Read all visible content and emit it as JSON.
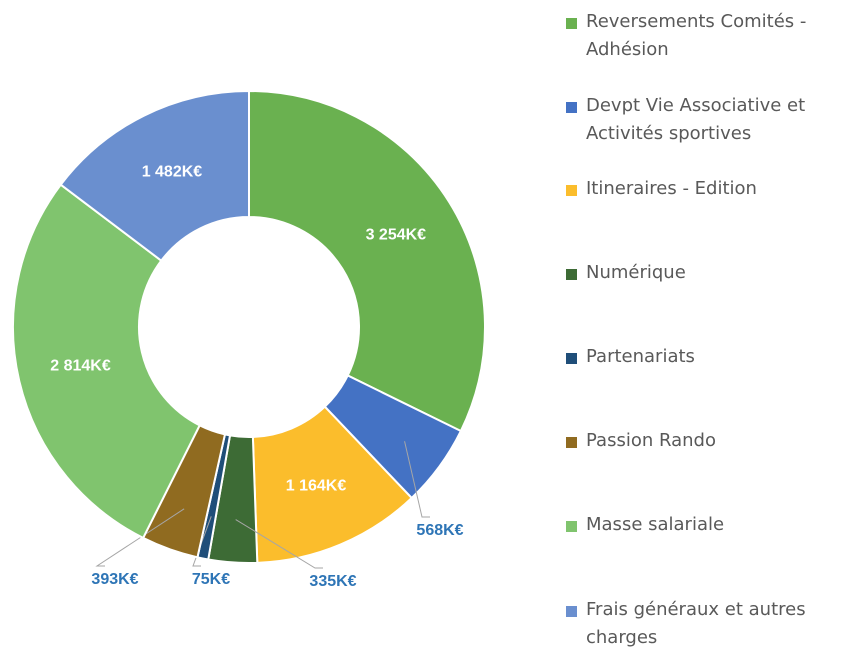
{
  "chart_data": {
    "type": "donut",
    "categories": [
      "Reversements Comités - Adhésion",
      "Devpt Vie Associative et Activités sportives",
      "Itineraires - Edition",
      "Numérique",
      "Partenariats",
      "Passion Rando",
      "Masse salariale",
      "Frais généraux et autres charges"
    ],
    "values": [
      3254,
      568,
      1164,
      335,
      75,
      393,
      2814,
      1482
    ],
    "value_labels": [
      "3 254K€",
      "568K€",
      "1 164K€",
      "335K€",
      "75K€",
      "393K€",
      "2 814K€",
      "1 482K€"
    ],
    "colors": [
      "#6ab150",
      "#4472c4",
      "#fbbd2c",
      "#3d6b35",
      "#1f4e79",
      "#906b20",
      "#80c46e",
      "#6a8fcf"
    ],
    "legend": "right"
  }
}
